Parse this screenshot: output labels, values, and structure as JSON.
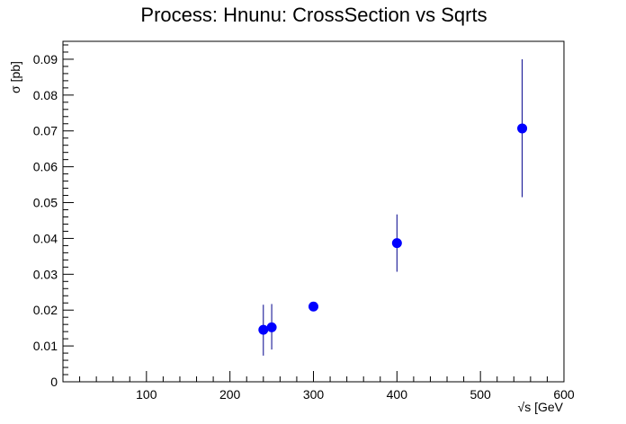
{
  "chart_data": {
    "type": "scatter",
    "title": "Process: Hnunu: CrossSection vs Sqrts",
    "xlabel": "√s [GeV",
    "ylabel": "σ [pb]",
    "xlim": [
      0,
      600
    ],
    "ylim": [
      0,
      0.095
    ],
    "x_ticks": [
      100,
      200,
      300,
      400,
      500,
      600
    ],
    "y_ticks": [
      0,
      0.01,
      0.02,
      0.03,
      0.04,
      0.05,
      0.06,
      0.07,
      0.08,
      0.09
    ],
    "x_tick_labels": [
      "100",
      "200",
      "300",
      "400",
      "500",
      "600"
    ],
    "y_tick_labels": [
      "0",
      "0.01",
      "0.02",
      "0.03",
      "0.04",
      "0.05",
      "0.06",
      "0.07",
      "0.08",
      "0.09"
    ],
    "grid": false,
    "series": [
      {
        "color": "#0000ff",
        "errorbar_color": "#00008b",
        "points": [
          {
            "x": 240,
            "y": 0.0145,
            "yerr_low": 0.0072,
            "yerr_high": 0.007
          },
          {
            "x": 250,
            "y": 0.0152,
            "yerr_low": 0.0062,
            "yerr_high": 0.0065
          },
          {
            "x": 300,
            "y": 0.021,
            "yerr_low": 0.0007,
            "yerr_high": 0.0007
          },
          {
            "x": 400,
            "y": 0.0387,
            "yerr_low": 0.008,
            "yerr_high": 0.008
          },
          {
            "x": 550,
            "y": 0.0707,
            "yerr_low": 0.0192,
            "yerr_high": 0.0193
          }
        ]
      }
    ]
  }
}
